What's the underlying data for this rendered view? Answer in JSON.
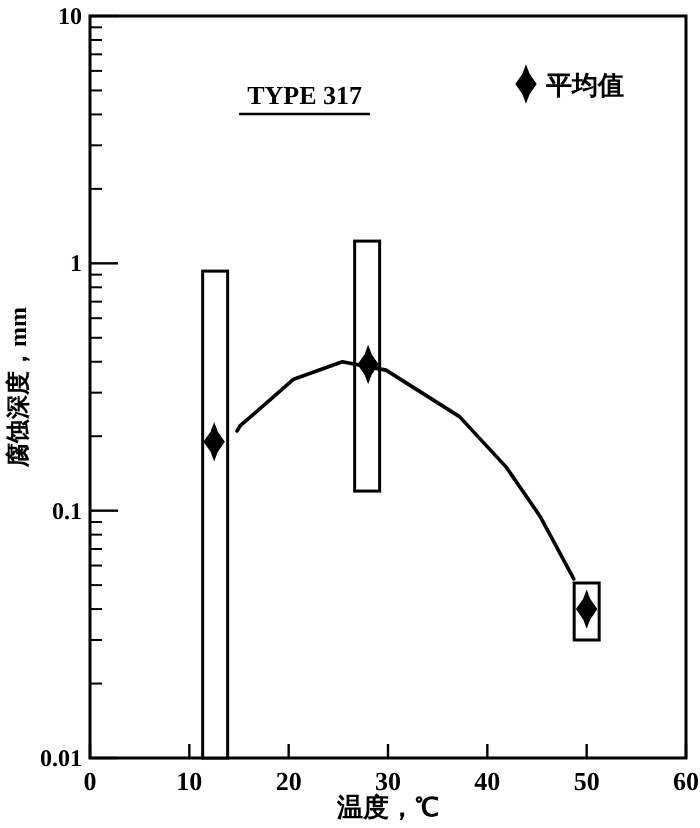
{
  "chart_data": {
    "type": "bar",
    "title": "TYPE 317",
    "xlabel": "温度，℃",
    "ylabel": "腐蚀深度，mm",
    "xlim": [
      0,
      60
    ],
    "xticks": [
      0,
      10,
      20,
      30,
      40,
      50,
      60
    ],
    "ylim": [
      0.01,
      10
    ],
    "yticks": [
      0.01,
      0.1,
      1,
      10
    ],
    "log": "y",
    "legend": "top right",
    "series": [
      {
        "color": "#ffffff",
        "x": [
          12.6,
          27.9,
          50
        ],
        "base": [
          0.01,
          0.12,
          0.03
        ],
        "values": [
          0.92,
          1.11,
          0.021
        ]
      },
      {
        "type": "line",
        "color": "#000000",
        "line_style": "solid",
        "x": [
          14.8,
          15.1,
          20.5,
          25.4,
          29.8,
          37.2,
          41.9,
          45.3,
          48.7
        ],
        "values": [
          0.21,
          0.22,
          0.34,
          0.4,
          0.37,
          0.24,
          0.15,
          0.095,
          0.053
        ]
      },
      {
        "type": "scatter",
        "name": "平均值",
        "color": "#000000",
        "marker": "diamond",
        "x": [
          12.5,
          28,
          50
        ],
        "values": [
          0.19,
          0.39,
          0.04
        ]
      }
    ]
  }
}
